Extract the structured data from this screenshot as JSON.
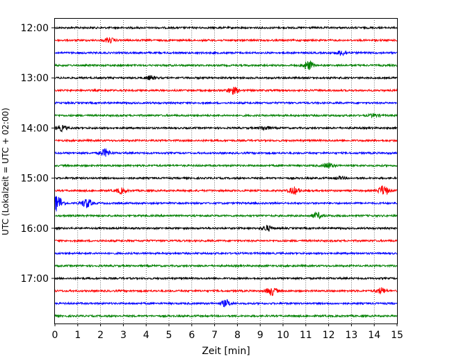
{
  "chart_data": {
    "type": "line",
    "xlabel": "Zeit  [min]",
    "ylabel": "UTC (Lokalzeit = UTC + 02:00)",
    "xlim": [
      0,
      15
    ],
    "x_ticks": [
      "0",
      "1",
      "2",
      "3",
      "4",
      "5",
      "6",
      "7",
      "8",
      "9",
      "10",
      "11",
      "12",
      "13",
      "14",
      "15"
    ],
    "y_ticks": [
      "12:00",
      "13:00",
      "14:00",
      "15:00",
      "16:00",
      "17:00"
    ],
    "grid": "vertical dotted lines at each minute",
    "series_colors": [
      "#000000",
      "#ff0000",
      "#0000ff",
      "#008000"
    ],
    "traces": [
      {
        "start": "12:00",
        "color": "#000000",
        "events": []
      },
      {
        "start": "12:15",
        "color": "#ff0000",
        "events": [
          {
            "t": 2.4,
            "amp": 0.35
          }
        ]
      },
      {
        "start": "12:30",
        "color": "#0000ff",
        "events": [
          {
            "t": 12.6,
            "amp": 0.4
          }
        ]
      },
      {
        "start": "12:45",
        "color": "#008000",
        "events": [
          {
            "t": 11.1,
            "amp": 0.7
          }
        ]
      },
      {
        "start": "13:00",
        "color": "#000000",
        "events": [
          {
            "t": 4.2,
            "amp": 0.3
          }
        ]
      },
      {
        "start": "13:15",
        "color": "#ff0000",
        "events": [
          {
            "t": 7.8,
            "amp": 0.55
          }
        ]
      },
      {
        "start": "13:30",
        "color": "#0000ff",
        "events": []
      },
      {
        "start": "13:45",
        "color": "#008000",
        "events": [
          {
            "t": 14.0,
            "amp": 0.25
          }
        ]
      },
      {
        "start": "14:00",
        "color": "#000000",
        "events": [
          {
            "t": 0.3,
            "amp": 0.4
          },
          {
            "t": 9.2,
            "amp": 0.3
          }
        ]
      },
      {
        "start": "14:15",
        "color": "#ff0000",
        "events": []
      },
      {
        "start": "14:30",
        "color": "#0000ff",
        "events": [
          {
            "t": 2.2,
            "amp": 0.6
          }
        ]
      },
      {
        "start": "14:45",
        "color": "#008000",
        "events": [
          {
            "t": 12.0,
            "amp": 0.4
          }
        ]
      },
      {
        "start": "15:00",
        "color": "#000000",
        "events": [
          {
            "t": 12.5,
            "amp": 0.2
          }
        ]
      },
      {
        "start": "15:15",
        "color": "#ff0000",
        "events": [
          {
            "t": 2.9,
            "amp": 0.4
          },
          {
            "t": 10.5,
            "amp": 0.55
          },
          {
            "t": 14.4,
            "amp": 0.75
          }
        ]
      },
      {
        "start": "15:30",
        "color": "#0000ff",
        "events": [
          {
            "t": 0.1,
            "amp": 1.2
          },
          {
            "t": 1.4,
            "amp": 0.7
          }
        ]
      },
      {
        "start": "15:45",
        "color": "#008000",
        "events": [
          {
            "t": 11.5,
            "amp": 0.45
          }
        ]
      },
      {
        "start": "16:00",
        "color": "#000000",
        "events": [
          {
            "t": 9.3,
            "amp": 0.4
          }
        ]
      },
      {
        "start": "16:15",
        "color": "#ff0000",
        "events": []
      },
      {
        "start": "16:30",
        "color": "#0000ff",
        "events": []
      },
      {
        "start": "16:45",
        "color": "#008000",
        "events": []
      },
      {
        "start": "17:00",
        "color": "#000000",
        "events": []
      },
      {
        "start": "17:15",
        "color": "#ff0000",
        "events": [
          {
            "t": 9.5,
            "amp": 0.65
          },
          {
            "t": 14.3,
            "amp": 0.45
          }
        ]
      },
      {
        "start": "17:30",
        "color": "#0000ff",
        "events": [
          {
            "t": 7.5,
            "amp": 0.5
          }
        ]
      },
      {
        "start": "17:45",
        "color": "#008000",
        "events": []
      }
    ]
  }
}
